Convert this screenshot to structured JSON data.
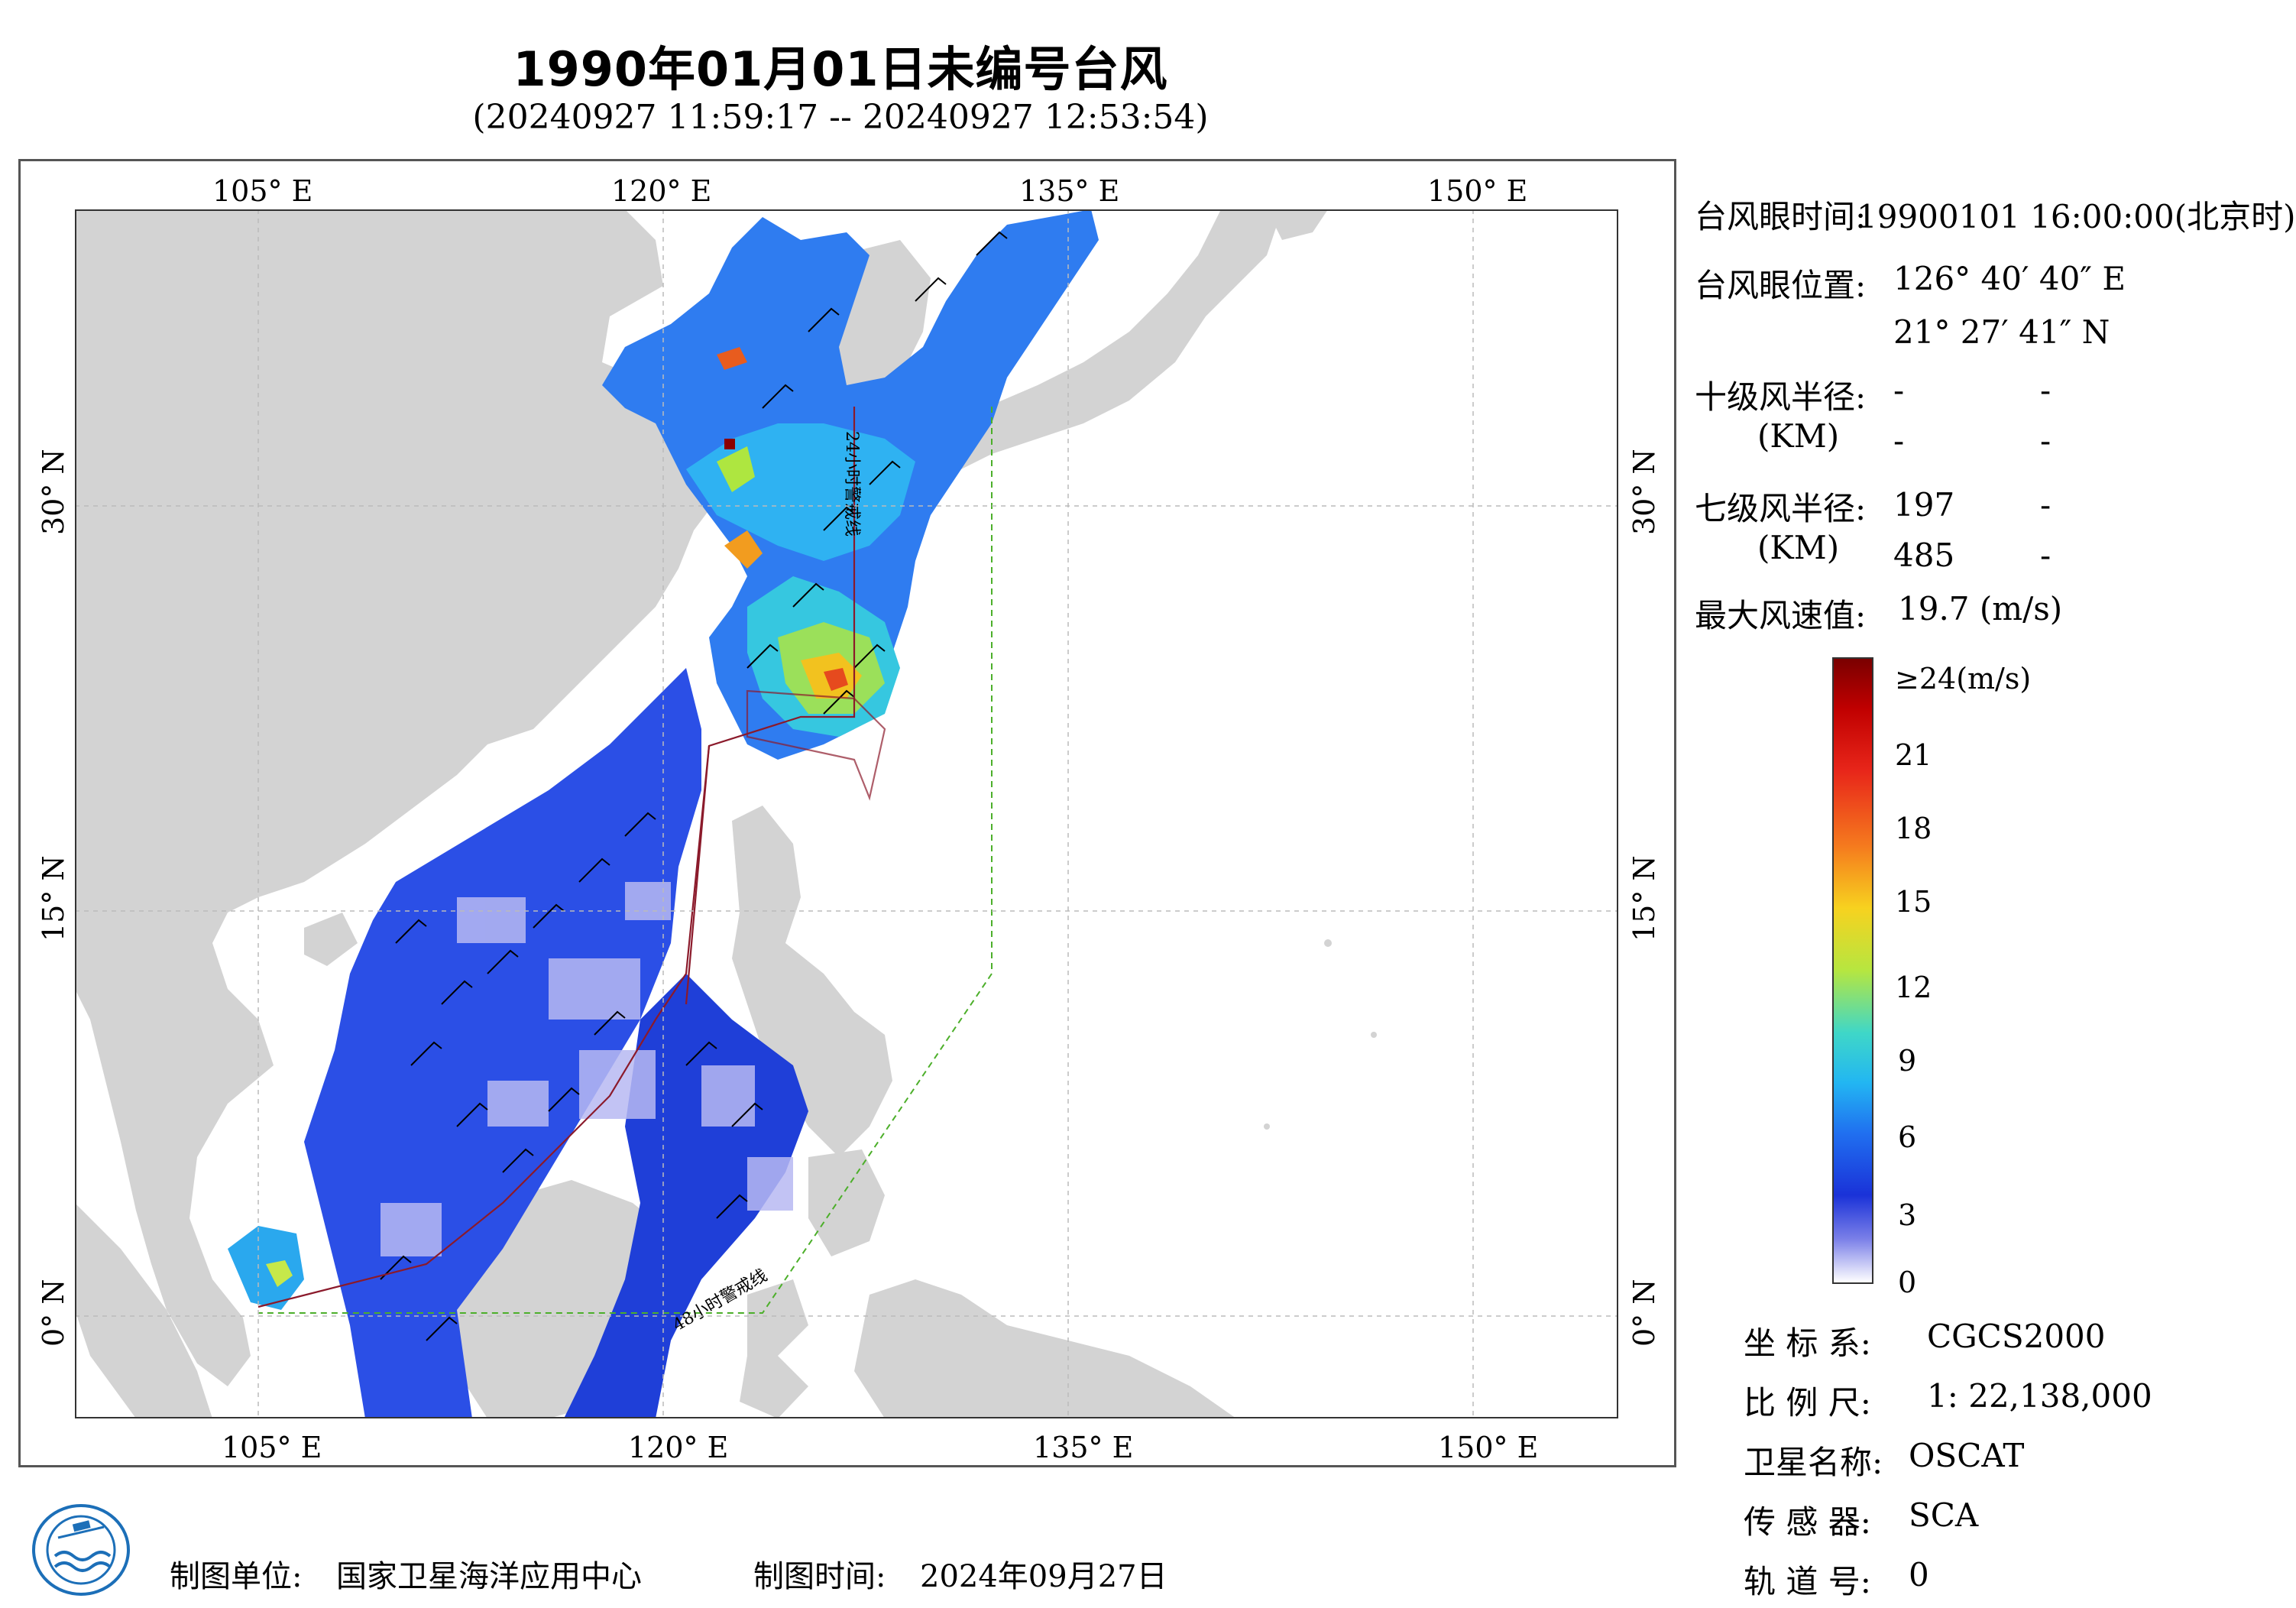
{
  "title": "1990年01月01日未编号台风",
  "subtitle": "(20240927 11:59:17 -- 20240927 12:53:54)",
  "map": {
    "lon_ticks": [
      "105° E",
      "120° E",
      "135° E",
      "150° E"
    ],
    "lat_ticks": [
      "30° N",
      "15° N",
      "0° N"
    ],
    "warning_line_24h": "24小时警戒线",
    "warning_line_48h": "48小时警戒线",
    "colors": {
      "land": "#d3d3d3",
      "sea": "#ffffff",
      "warning_24h": "#8b1a2b",
      "warning_48h": "#4caf2a"
    }
  },
  "info": {
    "eye_time_label": "台风眼时间:",
    "eye_time_value": "19900101 16:00:00(北京时)",
    "eye_pos_label": "台风眼位置:",
    "eye_lon": "126° 40′ 40″ E",
    "eye_lat": "21° 27′ 41″ N",
    "r10_label": "十级风半径:",
    "r10_unit": "(KM)",
    "r10_v1": "-",
    "r10_v2": "-",
    "r10_v3": "-",
    "r10_v4": "-",
    "r7_label": "七级风半径:",
    "r7_unit": "(KM)",
    "r7_v1": "197",
    "r7_v2": "-",
    "r7_v3": "485",
    "r7_v4": "-",
    "max_label": "最大风速值:",
    "max_value": "19.7  (m/s)"
  },
  "colorbar": {
    "labels": [
      "≥24(m/s)",
      "21",
      "18",
      "15",
      "12",
      "9",
      "6",
      "3",
      "0"
    ]
  },
  "meta": {
    "coord_label": "坐 标 系:",
    "coord_value": "CGCS2000",
    "scale_label": "比 例 尺:",
    "scale_value": "1: 22,138,000",
    "sat_label": "卫星名称:",
    "sat_value": "OSCAT",
    "sensor_label": "传 感 器:",
    "sensor_value": "SCA",
    "orbit_label": "轨 道 号:",
    "orbit_value": "0"
  },
  "footer": {
    "unit_label": "制图单位:",
    "unit_value": "国家卫星海洋应用中心",
    "time_label": "制图时间:",
    "time_value": "2024年09月27日"
  }
}
